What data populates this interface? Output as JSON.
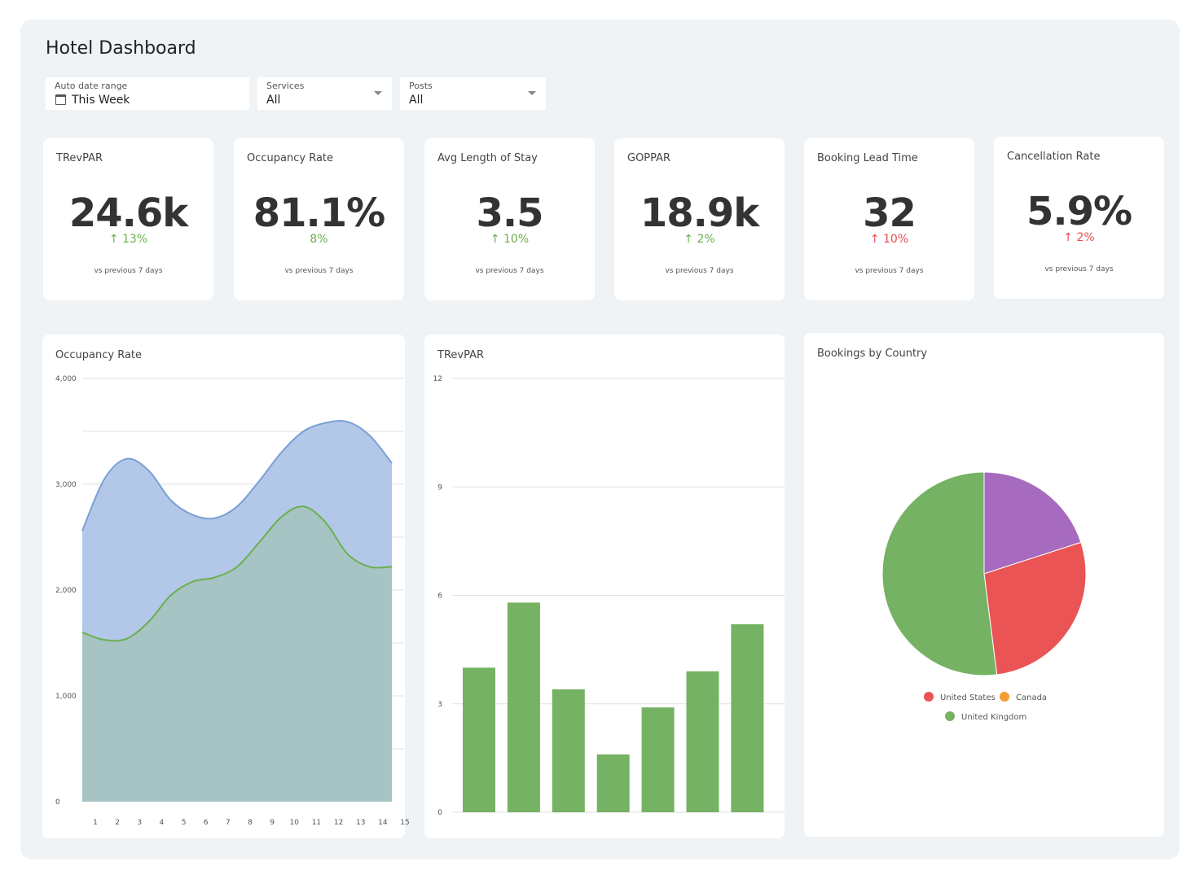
{
  "page": {
    "title": "Hotel Dashboard"
  },
  "filters": {
    "date": {
      "label": "Auto date range",
      "value": "This Week"
    },
    "services": {
      "label": "Services",
      "value": "All"
    },
    "posts": {
      "label": "Posts",
      "value": "All"
    }
  },
  "kpis": [
    {
      "title": "TRevPAR",
      "value": "24.6k",
      "delta": "↑ 13%",
      "trend": "up",
      "footnote": "vs previous 7 days"
    },
    {
      "title": "Occupancy Rate",
      "value": "81.1%",
      "delta": "8%",
      "trend": "up",
      "footnote": "vs previous 7 days"
    },
    {
      "title": "Avg Length of Stay",
      "value": "3.5",
      "delta": "↑ 10%",
      "trend": "up",
      "footnote": "vs previous 7 days"
    },
    {
      "title": "GOPPAR",
      "value": "18.9k",
      "delta": "↑ 2%",
      "trend": "up",
      "footnote": "vs previous 7 days"
    },
    {
      "title": "Booking Lead Time",
      "value": "32",
      "delta": "↑ 10%",
      "trend": "down",
      "footnote": "vs previous 7 days"
    },
    {
      "title": "Cancellation Rate",
      "value": "5.9%",
      "delta": "↑ 2%",
      "trend": "down",
      "footnote": "vs previous 7 days"
    }
  ],
  "colors": {
    "green": "#6ab04c",
    "red": "#e74c4c",
    "blue_area": "#b3c8e8",
    "blue_line": "#7a9fd4",
    "green_area": "#a6c4c4",
    "green_line": "#6ab04c",
    "bar": "#76b263",
    "pie_purple": "#a66bbe",
    "pie_red": "#ea5455",
    "pie_green": "#76b263",
    "pie_orange": "#f39c33",
    "grid": "#e2e2e2"
  },
  "charts": {
    "occupancy": {
      "title": "Occupancy Rate"
    },
    "trevpar": {
      "title": "TRevPAR"
    },
    "bookings": {
      "title": "Bookings by Country"
    }
  },
  "chart_data": [
    {
      "type": "area",
      "title": "Occupancy Rate",
      "x": [
        1,
        2,
        3,
        4,
        5,
        6,
        7,
        8,
        9,
        10,
        11,
        12,
        13,
        14,
        15
      ],
      "ylim": [
        0,
        4000
      ],
      "yticks": [
        0,
        1000,
        2000,
        3000,
        4000
      ],
      "ytick_labels": [
        "0",
        "1,000",
        "2,000",
        "3,000",
        "4,000"
      ],
      "grid": true,
      "series": [
        {
          "values": [
            2560,
            3050,
            3240,
            3130,
            2850,
            2710,
            2680,
            2790,
            3030,
            3300,
            3500,
            3580,
            3590,
            3460,
            3200
          ]
        },
        {
          "values": [
            1600,
            1530,
            1540,
            1700,
            1950,
            2080,
            2120,
            2220,
            2450,
            2690,
            2790,
            2640,
            2340,
            2220,
            2220
          ]
        }
      ]
    },
    {
      "type": "bar",
      "title": "TRevPAR",
      "categories": [
        "",
        "",
        "",
        "",
        "",
        "",
        ""
      ],
      "values": [
        4.0,
        5.8,
        3.4,
        1.6,
        2.9,
        3.9,
        5.2
      ],
      "ylim": [
        0,
        12
      ],
      "yticks": [
        0,
        3,
        6,
        9,
        12
      ],
      "grid": true
    },
    {
      "type": "pie",
      "title": "Bookings by Country",
      "slices": [
        {
          "label": "",
          "value": 20,
          "color": "#a66bbe"
        },
        {
          "label": "United States",
          "value": 28,
          "color": "#ea5455"
        },
        {
          "label": "United Kingdom",
          "value": 52,
          "color": "#76b263"
        }
      ],
      "legend": [
        {
          "label": "United States",
          "color": "#ea5455"
        },
        {
          "label": "Canada",
          "color": "#f39c33"
        },
        {
          "label": "United Kingdom",
          "color": "#76b263"
        }
      ],
      "legend_position": "bottom"
    }
  ]
}
